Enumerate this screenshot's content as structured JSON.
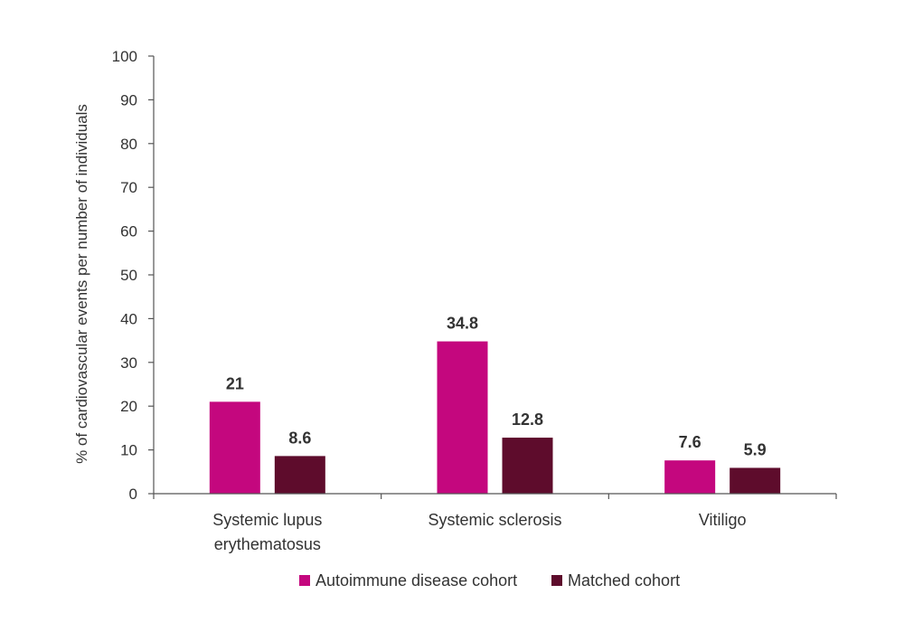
{
  "chart_data": {
    "type": "bar",
    "title": "",
    "xlabel": "",
    "ylabel": "% of cardiovascular events per number of individuals",
    "ylim": [
      0,
      100
    ],
    "yticks": [
      0,
      10,
      20,
      30,
      40,
      50,
      60,
      70,
      80,
      90,
      100
    ],
    "grid": false,
    "legend_position": "bottom",
    "categories": [
      [
        "Systemic lupus",
        "erythematosus"
      ],
      [
        "Systemic sclerosis"
      ],
      [
        "Vitiligo"
      ]
    ],
    "series": [
      {
        "name": "Autoimmune disease cohort",
        "color": "#C4077E",
        "values": [
          21,
          34.8,
          7.6
        ],
        "labels": [
          "21",
          "34.8",
          "7.6"
        ]
      },
      {
        "name": "Matched cohort",
        "color": "#5E0C2C",
        "values": [
          8.6,
          12.8,
          5.9
        ],
        "labels": [
          "8.6",
          "12.8",
          "5.9"
        ]
      }
    ]
  }
}
